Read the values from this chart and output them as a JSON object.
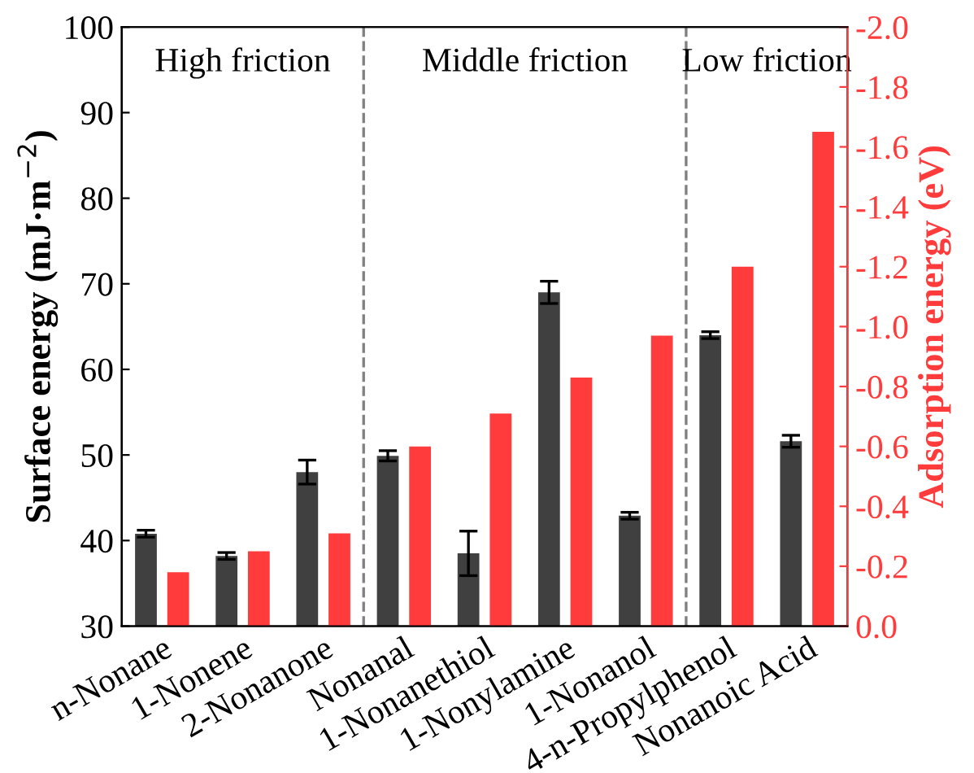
{
  "chart_data": {
    "type": "bar",
    "categories": [
      "n-Nonane",
      "1-Nonene",
      "2-Nonanone",
      "Nonanal",
      "1-Nonanethiol",
      "1-Nonylamine",
      "1-Nonanol",
      "4-n-Propylphenol",
      "Nonanoic Acid"
    ],
    "series": [
      {
        "color": "#404040",
        "values": [
          40.8,
          38.2,
          48.0,
          49.9,
          38.5,
          69.0,
          42.9,
          64.0,
          51.6
        ],
        "errors": [
          0.4,
          0.4,
          1.4,
          0.6,
          2.6,
          1.3,
          0.4,
          0.4,
          0.7
        ]
      },
      {
        "color": "#ff3b3b",
        "axis": "y2",
        "values": [
          -0.18,
          -0.25,
          -0.31,
          -0.6,
          -0.71,
          -0.83,
          -0.97,
          -1.2,
          -1.65
        ]
      }
    ],
    "ylabel": "Surface energy (mJ·m$^{−2}$)",
    "y2label": "Adsorption energy (eV)",
    "ylim": [
      30,
      100
    ],
    "yticks": [
      30,
      40,
      50,
      60,
      70,
      80,
      90,
      100
    ],
    "y2lim": [
      0,
      -2.0
    ],
    "y2ticks": [
      {
        "value": 0,
        "label": "0.0"
      },
      {
        "value": -0.2,
        "label": "-0.2"
      },
      {
        "value": -0.4,
        "label": "-0.4"
      },
      {
        "value": -0.6,
        "label": "-0.6"
      },
      {
        "value": -0.8,
        "label": "-0.8"
      },
      {
        "value": -1.0,
        "label": "-1.0"
      },
      {
        "value": -1.2,
        "label": "-1.2"
      },
      {
        "value": -1.4,
        "label": "-1.4"
      },
      {
        "value": -1.6,
        "label": "-1.6"
      },
      {
        "value": -1.8,
        "label": "-1.8"
      },
      {
        "value": -2.0,
        "label": "-2.0"
      }
    ],
    "annotations": [
      "High friction",
      "Middle friction",
      "Low friction"
    ],
    "grid": false,
    "legend": false
  }
}
